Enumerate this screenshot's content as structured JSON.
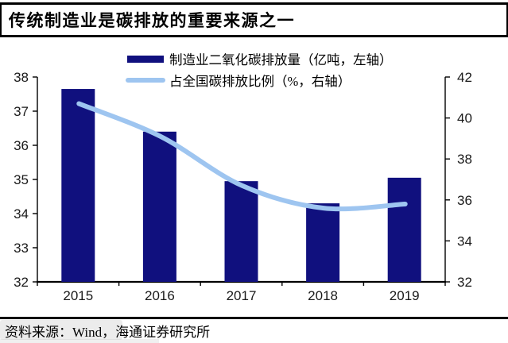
{
  "title": "传统制造业是碳排放的重要来源之一",
  "legend": {
    "items": [
      {
        "label": "制造业二氧化碳排放量（亿吨，左轴）",
        "swatch": "bar",
        "color": "#10107E"
      },
      {
        "label": "占全国碳排放比例（%，右轴）",
        "swatch": "line",
        "color": "#9EC5F0"
      }
    ]
  },
  "chart_data": {
    "type": "bar",
    "subtype": "combo-bar-line-dual-axis",
    "categories": [
      "2015",
      "2016",
      "2017",
      "2018",
      "2019"
    ],
    "series": [
      {
        "name": "制造业二氧化碳排放量（亿吨，左轴）",
        "type": "bar",
        "axis": "left",
        "color": "#10107E",
        "values": [
          37.65,
          36.4,
          34.95,
          34.3,
          35.05
        ]
      },
      {
        "name": "占全国碳排放比例（%，右轴）",
        "type": "line",
        "axis": "right",
        "color": "#9EC5F0",
        "values": [
          40.7,
          39.1,
          36.7,
          35.6,
          35.8
        ]
      }
    ],
    "left_axis": {
      "min": 32,
      "max": 38,
      "ticks": [
        "38",
        "37",
        "36",
        "35",
        "34",
        "33",
        "32"
      ]
    },
    "right_axis": {
      "min": 32,
      "max": 42,
      "ticks": [
        "42",
        "40",
        "38",
        "36",
        "34",
        "32"
      ]
    },
    "grid": false,
    "legend_position": "top",
    "title": "传统制造业是碳排放的重要来源之一"
  },
  "footer": {
    "source": "资料来源：Wind，海通证券研究所"
  },
  "colors": {
    "bar": "#10107E",
    "line": "#9EC5F0",
    "axis": "#000000"
  }
}
